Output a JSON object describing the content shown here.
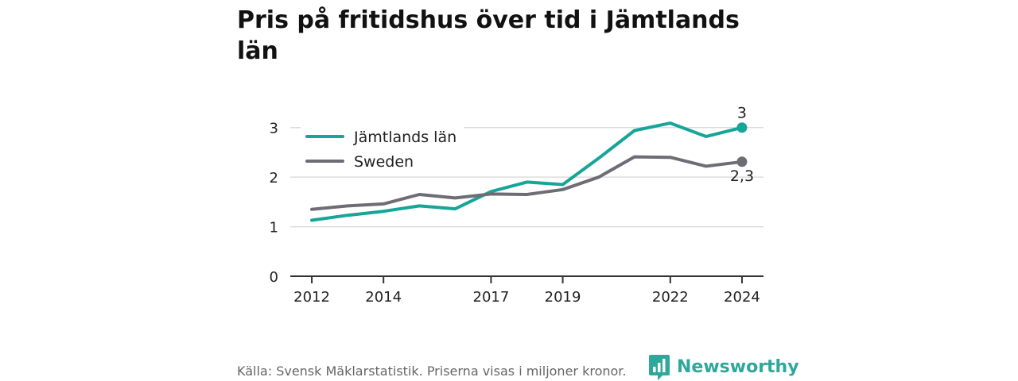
{
  "title": "Pris på fritidshus över tid i Jämtlands län",
  "source": "Källa: Svensk Mäklarstatistik. Priserna visas i miljoner kronor.",
  "brand": {
    "name": "Newsworthy",
    "icon": "newsworthy-logo-icon",
    "color": "#2ea89a"
  },
  "chart_data": {
    "type": "line",
    "title": "Pris på fritidshus över tid i Jämtlands län",
    "xlabel": "",
    "ylabel": "",
    "xlim": [
      2011.4,
      2024.6
    ],
    "ylim": [
      0,
      3.3
    ],
    "x_ticks": [
      2012,
      2014,
      2017,
      2019,
      2022,
      2024
    ],
    "x_tick_labels": [
      "2012",
      "2014",
      "2017",
      "2019",
      "2022",
      "2024"
    ],
    "y_ticks": [
      0,
      1,
      2,
      3
    ],
    "y_tick_labels": [
      "0",
      "1",
      "2",
      "3"
    ],
    "grid": true,
    "legend": "top-left",
    "x": [
      2012,
      2013,
      2014,
      2015,
      2016,
      2017,
      2018,
      2019,
      2020,
      2021,
      2022,
      2023,
      2024
    ],
    "series": [
      {
        "name": "Jämtlands län",
        "color": "#16a598",
        "values": [
          1.13,
          1.23,
          1.31,
          1.42,
          1.36,
          1.71,
          1.9,
          1.85,
          2.38,
          2.94,
          3.09,
          2.82,
          3.0
        ],
        "end_label": "3",
        "end_label_position": "above"
      },
      {
        "name": "Sweden",
        "color": "#6e6d75",
        "values": [
          1.35,
          1.42,
          1.46,
          1.65,
          1.58,
          1.66,
          1.65,
          1.75,
          2.0,
          2.41,
          2.4,
          2.22,
          2.31
        ],
        "end_label": "2,3",
        "end_label_position": "below"
      }
    ]
  }
}
